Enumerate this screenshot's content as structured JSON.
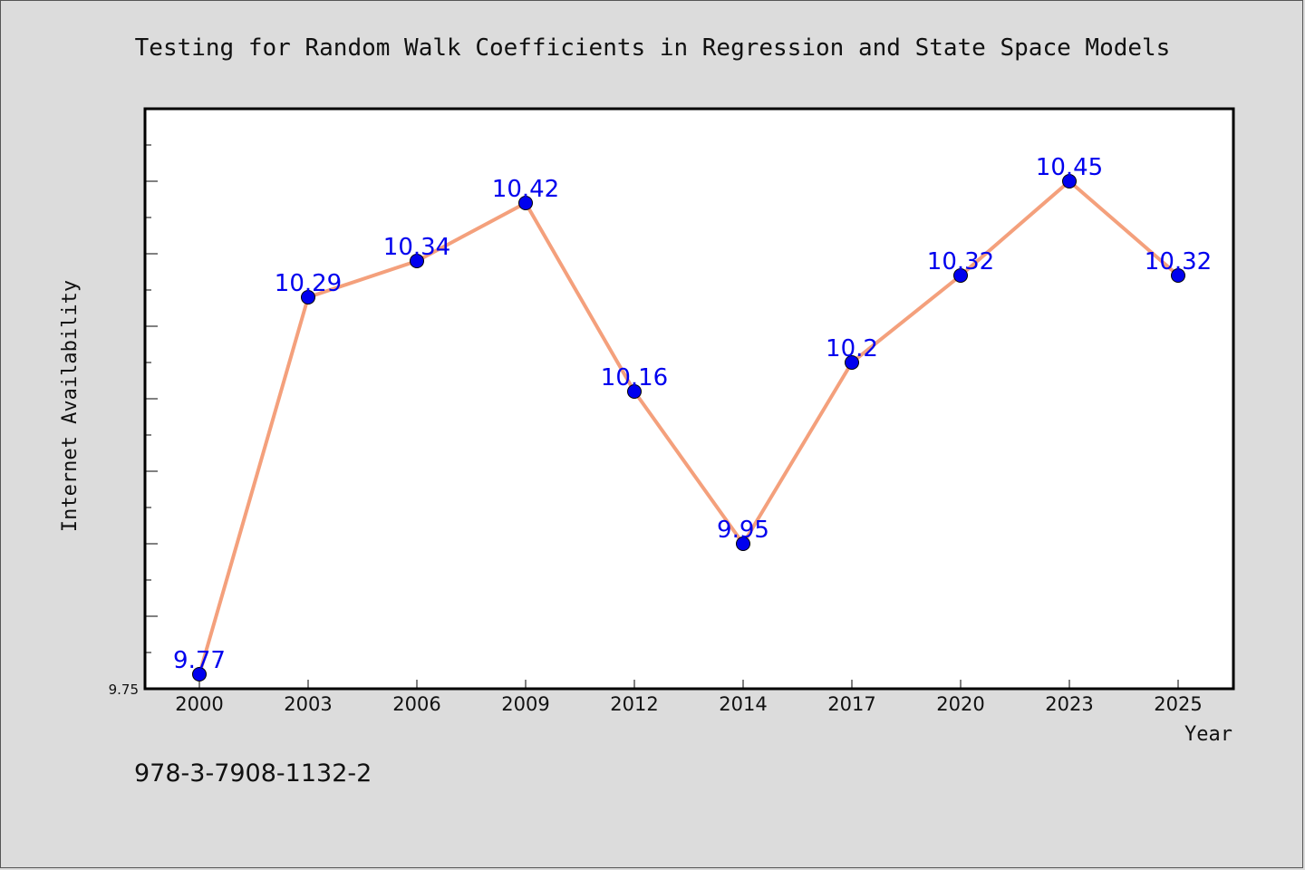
{
  "chart_data": {
    "type": "line",
    "title": "Testing for Random Walk Coefficients in Regression and State Space Models",
    "xlabel": "Year",
    "ylabel": "Internet Availability",
    "categories": [
      "2000",
      "2003",
      "2006",
      "2009",
      "2012",
      "2014",
      "2017",
      "2020",
      "2023",
      "2025"
    ],
    "series": [
      {
        "values": [
          9.77,
          10.29,
          10.34,
          10.42,
          10.16,
          9.95,
          10.2,
          10.32,
          10.45,
          10.32
        ],
        "labels": [
          "9.77",
          "10.29",
          "10.34",
          "10.42",
          "10.16",
          "9.95",
          "10.2",
          "10.32",
          "10.45",
          "10.32"
        ]
      }
    ],
    "ylim": [
      9.75,
      10.55
    ],
    "yticks_labeled": [
      "9.75"
    ],
    "line_color": "#f4a07c",
    "marker_color": "#0000ee",
    "label_color": "#0000ee",
    "grid": false
  },
  "footer": {
    "isbn": "978-3-7908-1132-2"
  }
}
